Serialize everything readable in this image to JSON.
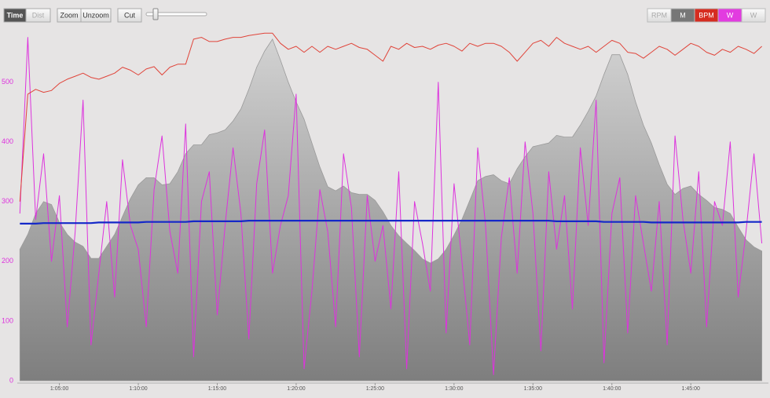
{
  "toolbar": {
    "left": [
      "Time",
      "Dist",
      "Zoom",
      "Unzoom",
      "Cut"
    ],
    "right": [
      "RPM"
    ]
  },
  "chart_data": {
    "type": "line",
    "x": [
      3750,
      3780,
      3810,
      3840,
      3870,
      3900,
      3930,
      3960,
      3990,
      4020,
      4050,
      4080,
      4110,
      4140,
      4170,
      4200,
      4230,
      4260,
      4290,
      4320,
      4350,
      4380,
      4410,
      4440,
      4470,
      4500,
      4530,
      4560,
      4590,
      4620,
      4650,
      4680,
      4710,
      4740,
      4770,
      4800,
      4830,
      4860,
      4890,
      4920,
      4950,
      4980,
      5010,
      5040,
      5070,
      5100,
      5130,
      5160,
      5190,
      5220,
      5250,
      5280,
      5310,
      5340,
      5370,
      5400,
      5430,
      5460,
      5490,
      5520,
      5550,
      5580,
      5610,
      5640,
      5670,
      5700,
      5730,
      5760,
      5790,
      5820,
      5850,
      5880,
      5910,
      5940,
      5970,
      6000,
      6030,
      6060,
      6090,
      6120,
      6150,
      6180,
      6210,
      6240,
      6270,
      6300,
      6330,
      6360,
      6390,
      6420,
      6450,
      6480,
      6510,
      6540,
      6570
    ],
    "xlim": [
      3740,
      6595
    ],
    "xticks": [
      {
        "value": 3900,
        "label": "1:05:00"
      },
      {
        "value": 4200,
        "label": "1:10:00"
      },
      {
        "value": 4500,
        "label": "1:15:00"
      },
      {
        "value": 4800,
        "label": "1:20:00"
      },
      {
        "value": 5100,
        "label": "1:25:00"
      },
      {
        "value": 5400,
        "label": "1:30:00"
      },
      {
        "value": 5700,
        "label": "1:35:00"
      },
      {
        "value": 6000,
        "label": "1:40:00"
      },
      {
        "value": 6300,
        "label": "1:45:00"
      }
    ],
    "ylim": [
      0,
      585
    ],
    "yticks": [
      0,
      100,
      200,
      300,
      400,
      500
    ],
    "series": [
      {
        "name": "M",
        "color": "#8a8a8a",
        "kind": "area",
        "values": [
          220,
          245,
          280,
          300,
          295,
          265,
          245,
          232,
          225,
          205,
          205,
          225,
          245,
          275,
          305,
          328,
          340,
          340,
          328,
          330,
          350,
          380,
          395,
          395,
          412,
          415,
          420,
          435,
          455,
          488,
          525,
          552,
          572,
          537,
          500,
          467,
          438,
          398,
          358,
          325,
          318,
          326,
          315,
          312,
          312,
          302,
          283,
          260,
          243,
          230,
          218,
          204,
          197,
          204,
          220,
          244,
          270,
          302,
          335,
          342,
          345,
          335,
          330,
          355,
          375,
          392,
          395,
          398,
          411,
          408,
          408,
          428,
          451,
          477,
          513,
          546,
          546,
          513,
          467,
          428,
          398,
          362,
          329,
          312,
          322,
          326,
          312,
          302,
          290,
          287,
          280,
          257,
          236,
          224,
          217
        ]
      },
      {
        "name": "W",
        "color": "#dd33dd",
        "kind": "line",
        "values": [
          280,
          575,
          270,
          380,
          200,
          310,
          90,
          250,
          470,
          60,
          180,
          300,
          140,
          370,
          260,
          220,
          90,
          320,
          410,
          250,
          180,
          430,
          40,
          300,
          350,
          110,
          260,
          390,
          280,
          70,
          330,
          420,
          180,
          260,
          310,
          480,
          20,
          150,
          320,
          250,
          90,
          380,
          290,
          40,
          310,
          200,
          260,
          120,
          350,
          20,
          300,
          230,
          150,
          500,
          80,
          330,
          200,
          60,
          390,
          260,
          10,
          240,
          340,
          180,
          400,
          280,
          50,
          350,
          220,
          310,
          120,
          390,
          260,
          470,
          30,
          280,
          340,
          80,
          310,
          230,
          150,
          300,
          60,
          410,
          270,
          180,
          350,
          90,
          300,
          260,
          400,
          140,
          250,
          380,
          230
        ]
      },
      {
        "name": "BPM",
        "color": "#e0443a",
        "kind": "line",
        "values": [
          300,
          480,
          488,
          483,
          486,
          498,
          505,
          510,
          515,
          508,
          505,
          510,
          515,
          525,
          520,
          512,
          522,
          526,
          512,
          525,
          530,
          530,
          572,
          575,
          568,
          568,
          572,
          575,
          575,
          578,
          580,
          582,
          582,
          565,
          555,
          560,
          550,
          560,
          550,
          560,
          555,
          560,
          565,
          558,
          555,
          545,
          535,
          560,
          555,
          565,
          558,
          560,
          555,
          562,
          565,
          560,
          552,
          565,
          560,
          565,
          565,
          560,
          550,
          535,
          550,
          565,
          570,
          560,
          575,
          565,
          560,
          555,
          560,
          550,
          560,
          570,
          565,
          550,
          548,
          540,
          550,
          560,
          555,
          545,
          555,
          565,
          560,
          550,
          545,
          555,
          550,
          560,
          555,
          548,
          560
        ]
      },
      {
        "name": "W",
        "color": "#1428c8",
        "kind": "line",
        "values": [
          263,
          263,
          263,
          264,
          264,
          264,
          264,
          264,
          264,
          264,
          265,
          265,
          265,
          265,
          265,
          265,
          266,
          266,
          266,
          266,
          266,
          266,
          267,
          267,
          267,
          267,
          267,
          267,
          267,
          268,
          268,
          268,
          268,
          268,
          268,
          268,
          268,
          268,
          268,
          268,
          268,
          268,
          268,
          268,
          268,
          268,
          268,
          268,
          268,
          268,
          268,
          268,
          268,
          268,
          268,
          268,
          268,
          268,
          268,
          268,
          268,
          268,
          268,
          268,
          268,
          268,
          268,
          268,
          267,
          267,
          267,
          267,
          267,
          267,
          266,
          266,
          266,
          266,
          266,
          266,
          265,
          265,
          265,
          265,
          265,
          265,
          265,
          265,
          265,
          265,
          265,
          265,
          266,
          266,
          266
        ]
      }
    ]
  }
}
